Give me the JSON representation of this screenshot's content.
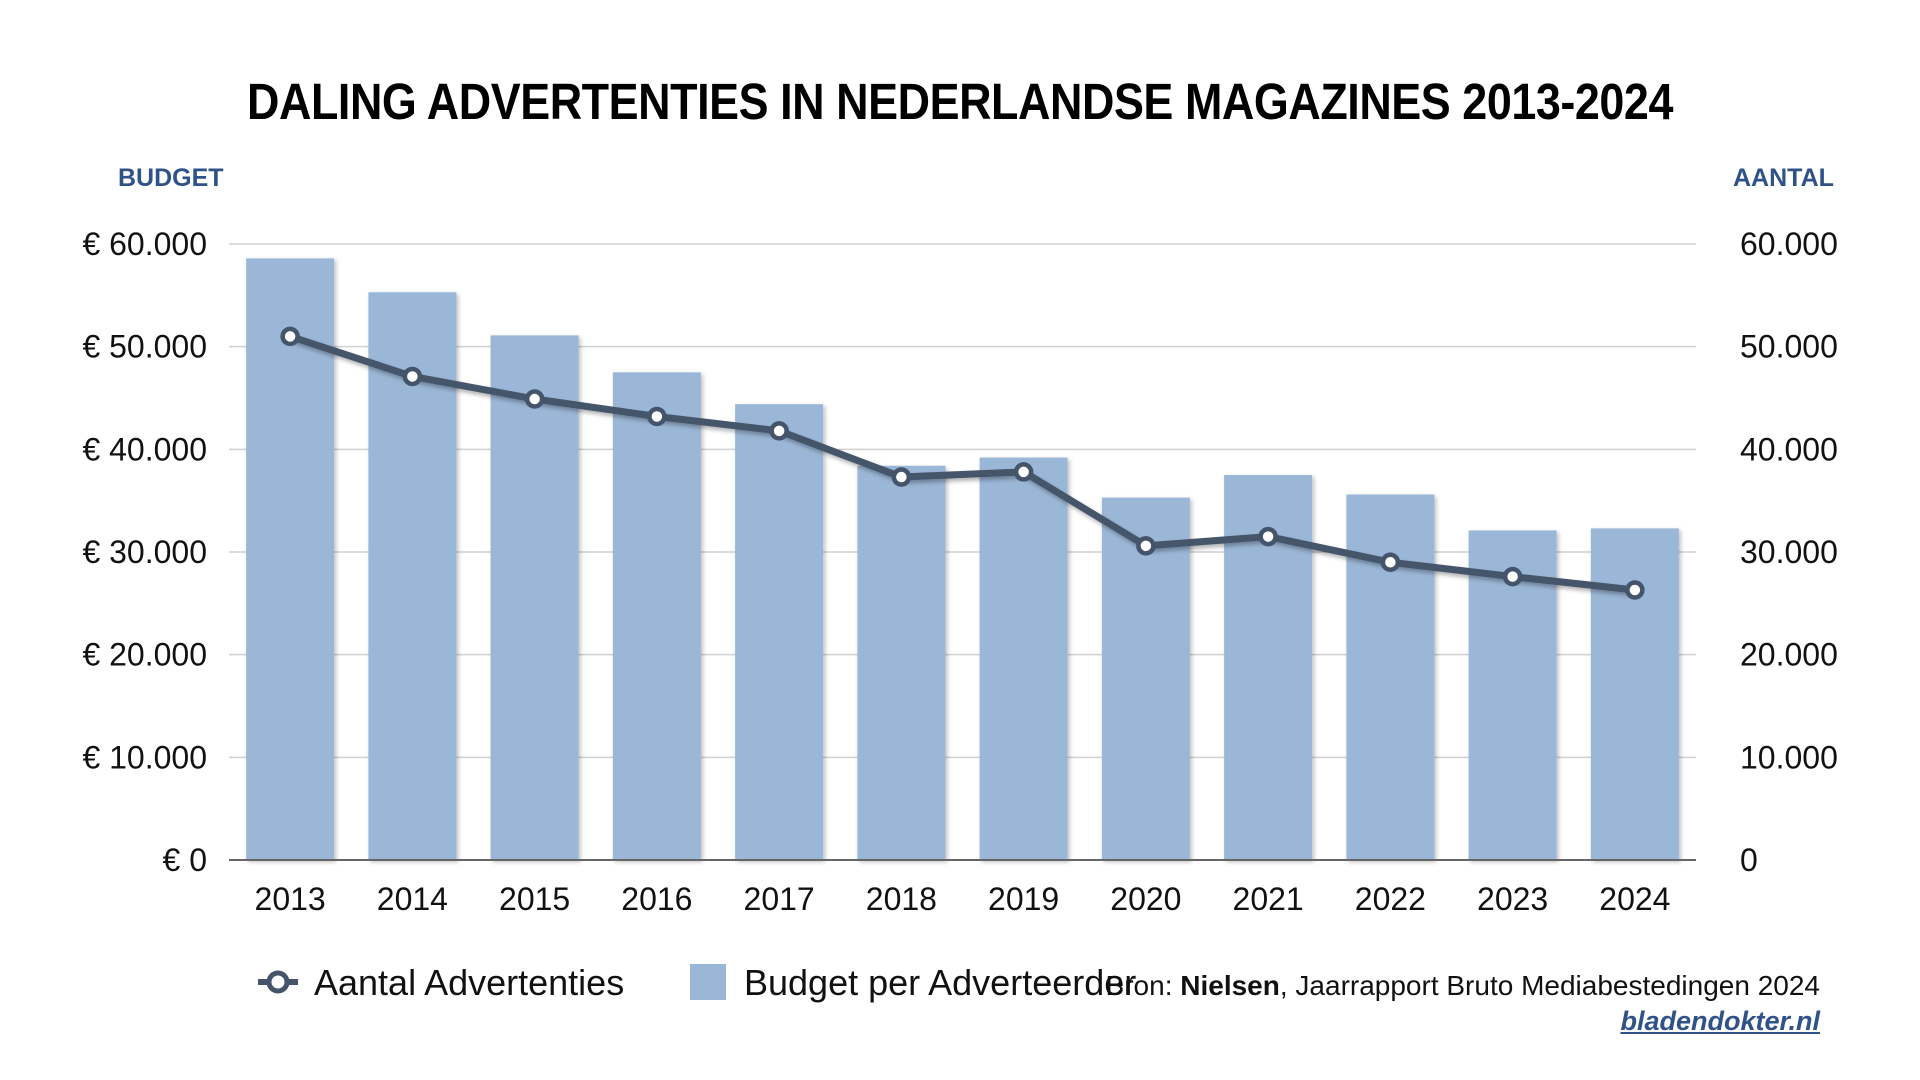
{
  "chart_data": {
    "type": "bar",
    "title": "DALING ADVERTENTIES IN NEDERLANDSE MAGAZINES 2013-2024",
    "ylabel": "BUDGET",
    "y2label": "AANTAL",
    "categories": [
      "2013",
      "2014",
      "2015",
      "2016",
      "2017",
      "2018",
      "2019",
      "2020",
      "2021",
      "2022",
      "2023",
      "2024"
    ],
    "ylim": [
      0,
      60000
    ],
    "y2lim": [
      0,
      60000
    ],
    "yticks": [
      "€ 0",
      "€ 10.000",
      "€ 20.000",
      "€ 30.000",
      "€ 40.000",
      "€ 50.000",
      "€ 60.000"
    ],
    "y2ticks": [
      "0",
      "10.000",
      "20.000",
      "30.000",
      "40.000",
      "50.000",
      "60.000"
    ],
    "series": [
      {
        "name": "Budget per Adverteerder",
        "type": "bar",
        "axis": "left",
        "values": [
          58600,
          55300,
          51100,
          47500,
          44400,
          38400,
          39200,
          35300,
          37500,
          35600,
          32100,
          32300
        ]
      },
      {
        "name": "Aantal Advertenties",
        "type": "line",
        "axis": "right",
        "values": [
          51000,
          47100,
          44900,
          43200,
          41800,
          37300,
          37800,
          30600,
          31500,
          29000,
          27600,
          26300
        ]
      }
    ],
    "grid": true,
    "legend_position": "bottom-left",
    "colors": {
      "bar": "#9bb7d7",
      "line": "#44546a",
      "marker_fill": "#ffffff",
      "grid": "#d0d0d0",
      "axis_title": "#2f5289"
    }
  },
  "legend": {
    "line_label": "Aantal Advertenties",
    "bar_label": "Budget per Adverteerder"
  },
  "source": {
    "prefix": "Bron: ",
    "org": "Nielsen",
    "rest": ", Jaarrapport Bruto Mediabestedingen 2024"
  },
  "credit": "bladendokter.nl"
}
